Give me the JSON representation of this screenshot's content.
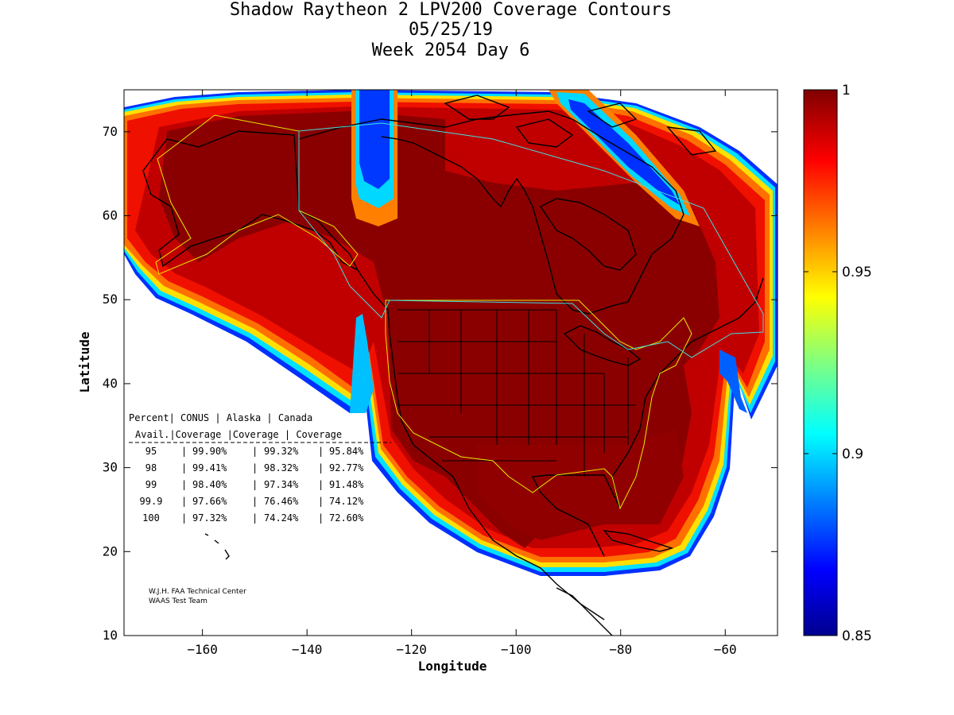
{
  "titles": {
    "line1": "Shadow Raytheon 2 LPV200 Coverage Contours",
    "line2": "05/25/19",
    "line3": "Week 2054 Day 6"
  },
  "map": {
    "xlabel": "Longitude",
    "ylabel": "Latitude",
    "xlim": [
      -175,
      -50
    ],
    "ylim": [
      10,
      75
    ],
    "xticks": [
      -160,
      -140,
      -120,
      -100,
      -80,
      -60
    ],
    "yticks": [
      10,
      20,
      30,
      40,
      50,
      60,
      70
    ]
  },
  "colorbar": {
    "min": 0.85,
    "max": 1,
    "ticks": [
      {
        "value": 1,
        "label": "1"
      },
      {
        "value": 0.95,
        "label": "0.95"
      },
      {
        "value": 0.9,
        "label": "0.9"
      },
      {
        "value": 0.85,
        "label": "0.85"
      }
    ],
    "colormap": "jet"
  },
  "table": {
    "header1": [
      "Percent",
      "CONUS",
      "Alaska",
      "Canada"
    ],
    "header2": [
      "Avail.",
      "Coverage",
      "Coverage",
      "Coverage"
    ],
    "rows": [
      {
        "avail": "95",
        "conus": "99.90%",
        "alaska": "99.32%",
        "canada": "95.84%"
      },
      {
        "avail": "98",
        "conus": "99.41%",
        "alaska": "98.32%",
        "canada": "92.77%"
      },
      {
        "avail": "99",
        "conus": "98.40%",
        "alaska": "97.34%",
        "canada": "91.48%"
      },
      {
        "avail": "99.9",
        "conus": "97.66%",
        "alaska": "76.46%",
        "canada": "74.12%"
      },
      {
        "avail": "100",
        "conus": "97.32%",
        "alaska": "74.24%",
        "canada": "72.60%"
      }
    ]
  },
  "credit": {
    "line1": "W.J.H. FAA Technical Center",
    "line2": "WAAS Test Team"
  },
  "colors": {
    "dark_red": "#800000",
    "red": "#c20000",
    "bright_red": "#ff1a00",
    "orange": "#ff8c00",
    "yellow": "#ffff00",
    "cyan": "#00ffff",
    "blue": "#0030ff",
    "navy": "#000080",
    "boundary_yellow": "#e8e800",
    "boundary_cyan": "#40e0e0"
  }
}
